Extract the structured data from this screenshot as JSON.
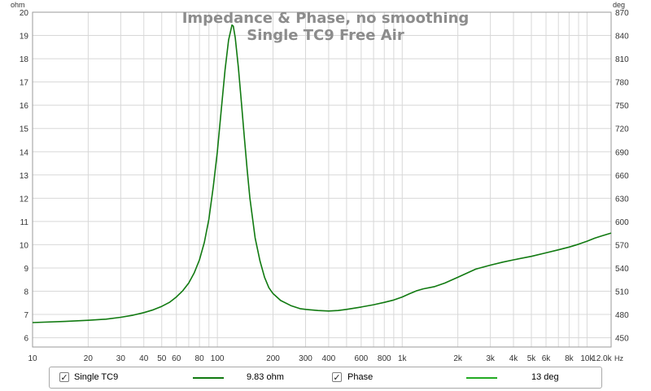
{
  "chart_data": {
    "type": "line",
    "title": "Impedance & Phase, no smoothing",
    "subtitle": "Single TC9 Free Air",
    "x_axis": {
      "scale": "log",
      "range": [
        10,
        13500
      ],
      "unit_label": "Hz",
      "ticks": [
        {
          "value": 10,
          "label": "10"
        },
        {
          "value": 20,
          "label": "20"
        },
        {
          "value": 30,
          "label": "30"
        },
        {
          "value": 40,
          "label": "40"
        },
        {
          "value": 50,
          "label": "50"
        },
        {
          "value": 60,
          "label": "60"
        },
        {
          "value": 80,
          "label": "80"
        },
        {
          "value": 100,
          "label": "100"
        },
        {
          "value": 200,
          "label": "200"
        },
        {
          "value": 300,
          "label": "300"
        },
        {
          "value": 400,
          "label": "400"
        },
        {
          "value": 600,
          "label": "600"
        },
        {
          "value": 800,
          "label": "800"
        },
        {
          "value": 1000,
          "label": "1k"
        },
        {
          "value": 2000,
          "label": "2k"
        },
        {
          "value": 3000,
          "label": "3k"
        },
        {
          "value": 4000,
          "label": "4k"
        },
        {
          "value": 5000,
          "label": "5k"
        },
        {
          "value": 6000,
          "label": "6k"
        },
        {
          "value": 8000,
          "label": "8k"
        },
        {
          "value": 10000,
          "label": "10k"
        },
        {
          "value": 12000,
          "label": "12.0k"
        }
      ],
      "grid": [
        10,
        20,
        30,
        40,
        50,
        60,
        70,
        80,
        90,
        100,
        200,
        300,
        400,
        500,
        600,
        700,
        800,
        900,
        1000,
        2000,
        3000,
        4000,
        5000,
        6000,
        7000,
        8000,
        9000,
        10000
      ]
    },
    "y_axis_left": {
      "unit_label": "ohm",
      "range": [
        5.6,
        20
      ],
      "ticks": [
        6,
        7,
        8,
        9,
        10,
        11,
        12,
        13,
        14,
        15,
        16,
        17,
        18,
        19,
        20
      ]
    },
    "y_axis_right": {
      "unit_label": "deg",
      "range": [
        438,
        870
      ],
      "ticks": [
        450,
        480,
        510,
        540,
        570,
        600,
        630,
        660,
        690,
        720,
        750,
        780,
        810,
        840,
        870
      ]
    },
    "grid": true,
    "series": [
      {
        "name": "Single TC9",
        "axis": "left",
        "color": "#117a11",
        "points": [
          [
            10,
            6.65
          ],
          [
            15,
            6.7
          ],
          [
            20,
            6.75
          ],
          [
            25,
            6.8
          ],
          [
            30,
            6.88
          ],
          [
            35,
            6.97
          ],
          [
            40,
            7.08
          ],
          [
            45,
            7.2
          ],
          [
            50,
            7.35
          ],
          [
            55,
            7.52
          ],
          [
            60,
            7.75
          ],
          [
            65,
            8.02
          ],
          [
            70,
            8.35
          ],
          [
            75,
            8.8
          ],
          [
            80,
            9.35
          ],
          [
            85,
            10.1
          ],
          [
            90,
            11.1
          ],
          [
            95,
            12.5
          ],
          [
            100,
            14.0
          ],
          [
            105,
            15.8
          ],
          [
            110,
            17.5
          ],
          [
            115,
            18.8
          ],
          [
            120,
            19.45
          ],
          [
            122,
            19.4
          ],
          [
            125,
            18.9
          ],
          [
            130,
            17.6
          ],
          [
            135,
            16.1
          ],
          [
            140,
            14.6
          ],
          [
            145,
            13.2
          ],
          [
            150,
            12.0
          ],
          [
            160,
            10.3
          ],
          [
            170,
            9.3
          ],
          [
            180,
            8.6
          ],
          [
            190,
            8.15
          ],
          [
            200,
            7.9
          ],
          [
            220,
            7.6
          ],
          [
            250,
            7.38
          ],
          [
            280,
            7.25
          ],
          [
            300,
            7.22
          ],
          [
            350,
            7.17
          ],
          [
            400,
            7.15
          ],
          [
            450,
            7.17
          ],
          [
            500,
            7.22
          ],
          [
            600,
            7.32
          ],
          [
            700,
            7.42
          ],
          [
            800,
            7.52
          ],
          [
            900,
            7.62
          ],
          [
            1000,
            7.75
          ],
          [
            1100,
            7.9
          ],
          [
            1200,
            8.02
          ],
          [
            1300,
            8.1
          ],
          [
            1500,
            8.2
          ],
          [
            1700,
            8.35
          ],
          [
            2000,
            8.6
          ],
          [
            2500,
            8.95
          ],
          [
            3000,
            9.12
          ],
          [
            3500,
            9.25
          ],
          [
            4000,
            9.35
          ],
          [
            5000,
            9.5
          ],
          [
            6000,
            9.65
          ],
          [
            7000,
            9.78
          ],
          [
            8000,
            9.9
          ],
          [
            9000,
            10.02
          ],
          [
            10000,
            10.15
          ],
          [
            11000,
            10.28
          ],
          [
            12000,
            10.38
          ],
          [
            13500,
            10.5
          ]
        ]
      }
    ],
    "legend": [
      {
        "name": "Single TC9",
        "checked": true,
        "value": "9.83 ohm",
        "color": "#117a11"
      },
      {
        "name": "Phase",
        "checked": true,
        "value": "13 deg",
        "color": "#22aa22"
      }
    ]
  }
}
